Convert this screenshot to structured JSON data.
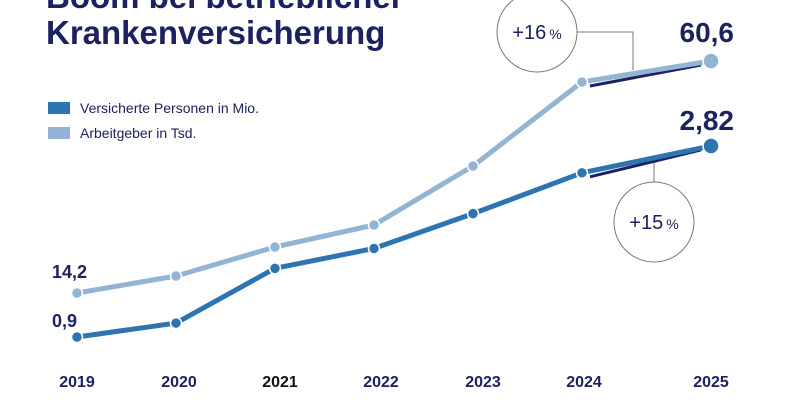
{
  "title_lines": [
    "Boom bei betrieblicher",
    "Krankenversicherung"
  ],
  "colors": {
    "dark": "#2e74b0",
    "light": "#94b4d4",
    "accent": "#1c2160"
  },
  "chart_data": {
    "type": "line",
    "title": "Boom bei betrieblicher Krankenversicherung",
    "categories": [
      "2019",
      "2020",
      "2021",
      "2022",
      "2023",
      "2024",
      "2025"
    ],
    "legend_position": "top-left",
    "grid": false,
    "series": [
      {
        "name": "Versicherte Personen in Mio.",
        "values": [
          0.9,
          1.04,
          1.59,
          1.79,
          2.14,
          2.55,
          2.82
        ],
        "color": "#2e74b0"
      },
      {
        "name": "Arbeitgeber in Tsd.",
        "values": [
          14.2,
          17.6,
          23.4,
          27.8,
          39.6,
          56.4,
          60.6
        ],
        "color": "#94b4d4"
      }
    ],
    "data_labels": {
      "dark_first": "0,9",
      "dark_last": "2,82",
      "light_first": "14,2",
      "light_last": "60,6"
    },
    "annotations": {
      "light_growth": "+16",
      "dark_growth": "+15",
      "percent": "%"
    }
  }
}
